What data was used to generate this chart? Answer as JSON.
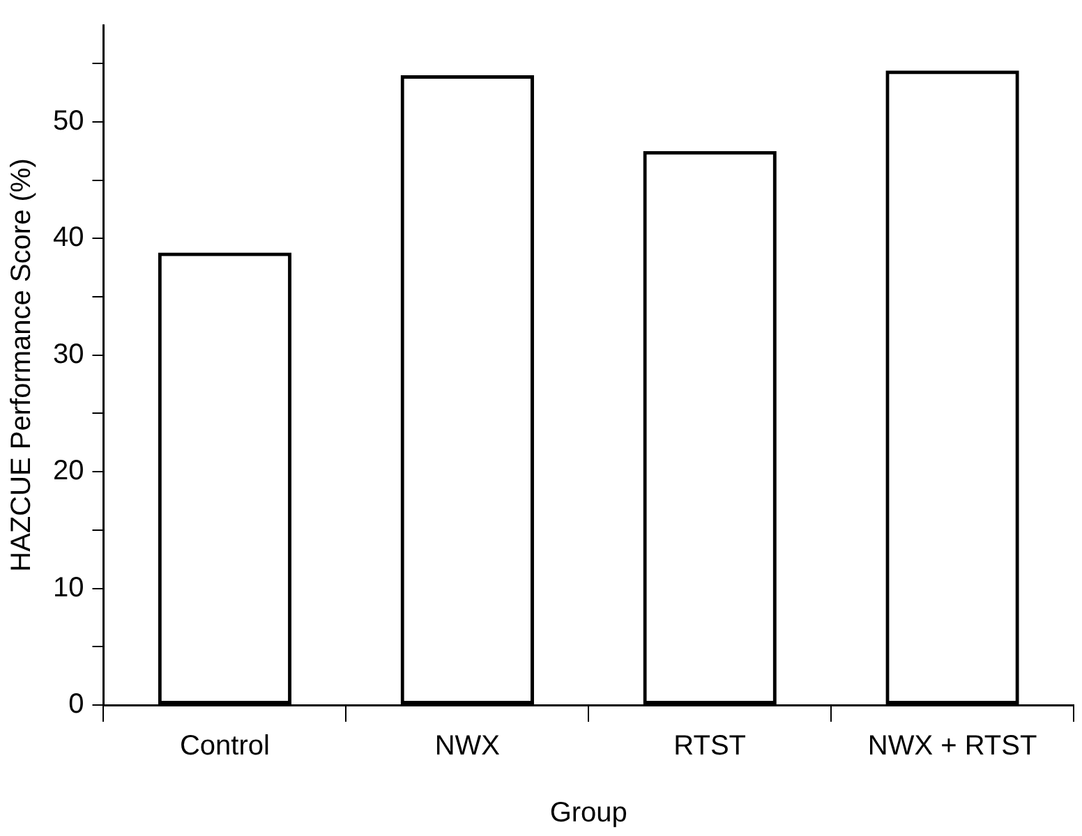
{
  "chart_data": {
    "type": "bar",
    "xlabel": "Group",
    "ylabel": "HAZCUE Performance Score (%)",
    "categories": [
      "Control",
      "NWX",
      "RTST",
      "NWX + RTST"
    ],
    "values": [
      38.8,
      54.0,
      47.5,
      54.4
    ],
    "color": "#000000",
    "ylim": [
      0,
      58.3
    ],
    "yticks": [
      0,
      {
        "value": 5,
        "label": null
      },
      10,
      {
        "value": 15,
        "label": null
      },
      20,
      {
        "value": 25,
        "label": null
      },
      30,
      {
        "value": 35,
        "label": null
      },
      40,
      {
        "value": 45,
        "label": null
      },
      50,
      {
        "value": 55,
        "label": null
      }
    ],
    "grid": false,
    "legend": false
  }
}
